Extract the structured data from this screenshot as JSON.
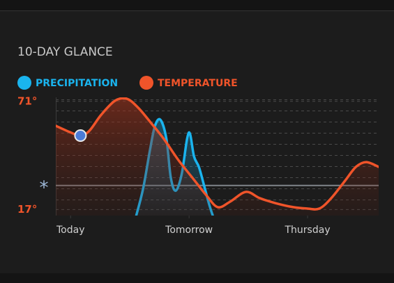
{
  "chart_data": {
    "type": "line",
    "title": "10-DAY GLANCE",
    "xlim": [
      -3,
      62.4
    ],
    "xticks": [
      {
        "value": 0,
        "label": "Today"
      },
      {
        "value": 24,
        "label": "Tomorrow"
      },
      {
        "value": 48,
        "label": "Thursday"
      }
    ],
    "ylim": [
      14,
      73
    ],
    "yticks": [
      {
        "value": 71,
        "label": "71°"
      },
      {
        "value": 17,
        "label": "17°"
      }
    ],
    "y2lim": [
      0,
      100
    ],
    "annotation": "*",
    "annotation_value": 29,
    "current_index": 2,
    "series": [
      {
        "name": "PRECIPITATION",
        "color": "#1ab4ee",
        "axis": "y2",
        "x": [
          13.3,
          14.7,
          16.1,
          17.1,
          18.2,
          19.4,
          20.3,
          21.3,
          22.5,
          23.6,
          24.2,
          25.0,
          26.0,
          27.0,
          28.1,
          28.8
        ],
        "values": [
          0,
          23,
          56,
          76,
          81,
          65,
          32,
          21,
          35,
          65,
          69,
          50,
          41,
          26,
          9,
          0
        ]
      },
      {
        "name": "TEMPERATURE",
        "color": "#f0542a",
        "x": [
          -3.0,
          -0.1,
          2.0,
          3.8,
          6.2,
          9.0,
          11.4,
          13.7,
          16.1,
          18.9,
          21.8,
          24.6,
          27.4,
          29.8,
          32.3,
          35.5,
          38.3,
          41.5,
          45.1,
          47.9,
          50.4,
          52.8,
          55.6,
          57.8,
          59.9,
          62.4
        ],
        "values": [
          58.8,
          55.6,
          53.9,
          56.3,
          64.3,
          71.3,
          72.3,
          67.8,
          60.8,
          52.2,
          41.8,
          33.1,
          24.4,
          18.2,
          20.9,
          25.8,
          22.7,
          20.2,
          18.2,
          17.5,
          17.5,
          22.7,
          31.4,
          38.3,
          40.7,
          38.3
        ]
      }
    ]
  }
}
